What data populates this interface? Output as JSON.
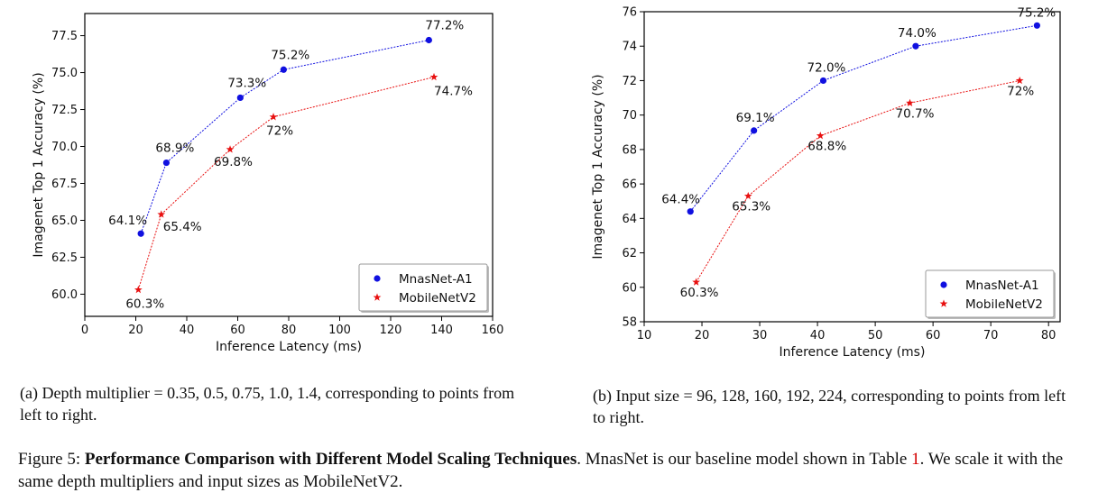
{
  "chart_data": [
    {
      "type": "line",
      "xlabel": "Inference Latency (ms)",
      "ylabel": "Imagenet Top 1 Accuracy (%)",
      "xlim": [
        0,
        160
      ],
      "ylim": [
        58.5,
        79
      ],
      "xticks": [
        0,
        20,
        40,
        60,
        80,
        100,
        120,
        140,
        160
      ],
      "yticks": [
        60.0,
        62.5,
        65.0,
        67.5,
        70.0,
        72.5,
        75.0,
        77.5
      ],
      "ytick_labels": [
        "60.0",
        "62.5",
        "65.0",
        "67.5",
        "70.0",
        "72.5",
        "75.0",
        "77.5"
      ],
      "legend": "bottom-right",
      "series": [
        {
          "name": "MnasNet-A1",
          "color": "#1010e0",
          "marker": "circle",
          "x": [
            22,
            32,
            61,
            78,
            135
          ],
          "y": [
            64.1,
            68.9,
            73.3,
            75.2,
            77.2
          ],
          "labels": [
            "64.1%",
            "68.9%",
            "73.3%",
            "75.2%",
            "77.2%"
          ]
        },
        {
          "name": "MobileNetV2",
          "color": "#e81010",
          "marker": "star",
          "x": [
            21,
            30,
            57,
            74,
            137
          ],
          "y": [
            60.3,
            65.4,
            69.8,
            72.0,
            74.7
          ],
          "labels": [
            "60.3%",
            "65.4%",
            "69.8%",
            "72%",
            "74.7%"
          ]
        }
      ]
    },
    {
      "type": "line",
      "xlabel": "Inference Latency (ms)",
      "ylabel": "Imagenet Top 1 Accuracy (%)",
      "xlim": [
        10,
        82
      ],
      "ylim": [
        58,
        76
      ],
      "xticks": [
        10,
        20,
        30,
        40,
        50,
        60,
        70,
        80
      ],
      "yticks": [
        58,
        60,
        62,
        64,
        66,
        68,
        70,
        72,
        74,
        76
      ],
      "ytick_labels": [
        "58",
        "60",
        "62",
        "64",
        "66",
        "68",
        "70",
        "72",
        "74",
        "76"
      ],
      "legend": "bottom-right",
      "series": [
        {
          "name": "MnasNet-A1",
          "color": "#1010e0",
          "marker": "circle",
          "x": [
            18,
            29,
            41,
            57,
            78
          ],
          "y": [
            64.4,
            69.1,
            72.0,
            74.0,
            75.2
          ],
          "labels": [
            "64.4%",
            "69.1%",
            "72.0%",
            "74.0%",
            "75.2%"
          ]
        },
        {
          "name": "MobileNetV2",
          "color": "#e81010",
          "marker": "star",
          "x": [
            19,
            28,
            40.5,
            56,
            75
          ],
          "y": [
            60.3,
            65.3,
            68.8,
            70.7,
            72.0
          ],
          "labels": [
            "60.3%",
            "65.3%",
            "68.8%",
            "70.7%",
            "72%"
          ]
        }
      ]
    }
  ],
  "captions": {
    "a": "(a) Depth multiplier = 0.35, 0.5, 0.75, 1.0, 1.4, corresponding to points from left to right.",
    "b": "(b) Input size = 96, 128, 160, 192, 224, corresponding to points from left to right."
  },
  "figure_caption": {
    "prefix": "Figure 5: ",
    "bold": "Performance Comparison with Different Model Scaling Techniques",
    "text1": ". MnasNet is our baseline model shown in Table ",
    "ref": "1",
    "text2": ". We scale it with the same depth multipliers and input sizes as MobileNetV2."
  }
}
